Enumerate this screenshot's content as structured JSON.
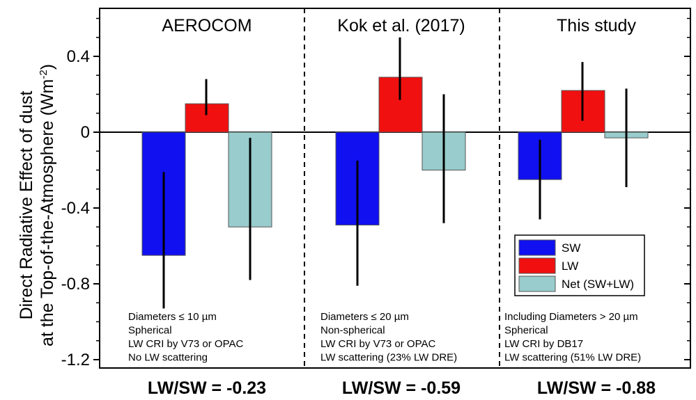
{
  "chart_data": {
    "type": "bar",
    "ylabel_line1": "Direct Radiative Effect of dust",
    "ylabel_line2": "at the Top-of-the-Atmosphere (Wm",
    "ylabel_sup": "-2",
    "ylabel_close": ")",
    "ylim": [
      -1.25,
      0.62
    ],
    "yticks": [
      0.4,
      0,
      -0.4,
      -0.8,
      -1.2
    ],
    "ytick_labels": [
      "0.4",
      "0",
      "-0.4",
      "-0.8",
      "-1.2"
    ],
    "series_names": [
      "SW",
      "LW",
      "Net (SW+LW)"
    ],
    "colors": {
      "SW": "#1010f0",
      "LW": "#f01010",
      "Net": "#99cccc"
    },
    "legend_location": "lower-right",
    "groups": [
      {
        "title": "AEROCOM",
        "values": [
          -0.65,
          0.15,
          -0.5
        ],
        "error_low": [
          -0.93,
          0.09,
          -0.78
        ],
        "error_high": [
          -0.21,
          0.28,
          -0.03
        ],
        "notes": [
          "Diameters ≤ 10 µm",
          "Spherical",
          "LW CRI by V73 or OPAC",
          "No LW scattering"
        ],
        "ratio": "LW/SW = -0.23"
      },
      {
        "title": "Kok et al. (2017)",
        "values": [
          -0.49,
          0.29,
          -0.2
        ],
        "error_low": [
          -0.81,
          0.17,
          -0.48
        ],
        "error_high": [
          -0.15,
          0.5,
          0.2
        ],
        "notes": [
          "Diameters ≤ 20 µm",
          "Non-spherical",
          "LW CRI by V73 or OPAC",
          "LW scattering (23% LW DRE)"
        ],
        "ratio": "LW/SW = -0.59"
      },
      {
        "title": "This study",
        "values": [
          -0.25,
          0.22,
          -0.03
        ],
        "error_low": [
          -0.46,
          0.06,
          -0.29
        ],
        "error_high": [
          -0.04,
          0.37,
          0.23
        ],
        "notes": [
          "Including Diameters > 20 µm",
          "Spherical",
          "LW CRI by DB17",
          "LW scattering (51% LW DRE)"
        ],
        "ratio": "LW/SW = -0.88"
      }
    ]
  }
}
